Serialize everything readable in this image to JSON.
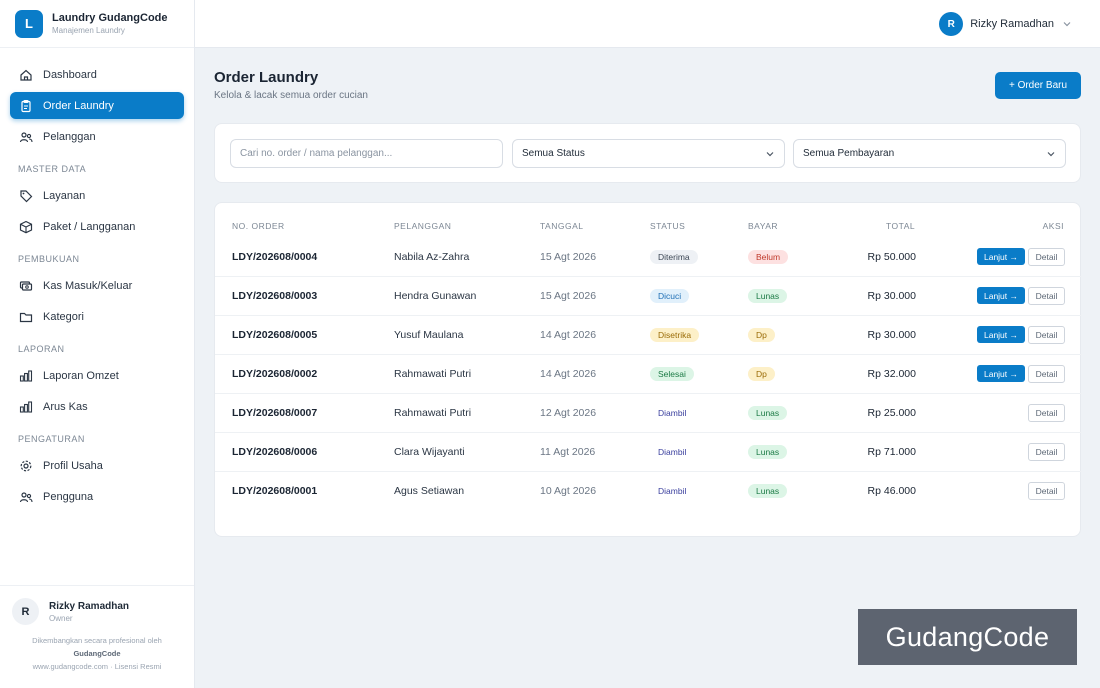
{
  "brand": {
    "logo_letter": "L",
    "title": "Laundry GudangCode",
    "subtitle": "Manajemen Laundry"
  },
  "nav": [
    {
      "label": "Dashboard",
      "icon": "home-icon",
      "active": false
    },
    {
      "label": "Order Laundry",
      "icon": "clipboard-icon",
      "active": true
    },
    {
      "label": "Pelanggan",
      "icon": "users-icon",
      "active": false
    }
  ],
  "sections": [
    {
      "title": "MASTER DATA",
      "items": [
        {
          "label": "Layanan",
          "icon": "tag-icon"
        },
        {
          "label": "Paket / Langganan",
          "icon": "box-icon"
        }
      ]
    },
    {
      "title": "PEMBUKUAN",
      "items": [
        {
          "label": "Kas Masuk/Keluar",
          "icon": "cash-icon"
        },
        {
          "label": "Kategori",
          "icon": "folder-icon"
        }
      ]
    },
    {
      "title": "LAPORAN",
      "items": [
        {
          "label": "Laporan Omzet",
          "icon": "bar-chart-icon"
        },
        {
          "label": "Arus Kas",
          "icon": "bar-chart-icon"
        }
      ]
    },
    {
      "title": "PENGATURAN",
      "items": [
        {
          "label": "Profil Usaha",
          "icon": "gear-icon"
        },
        {
          "label": "Pengguna",
          "icon": "users-icon"
        }
      ]
    }
  ],
  "sidebar_user": {
    "initial": "R",
    "name": "Rizky Ramadhan",
    "role": "Owner"
  },
  "credits": {
    "line1": "Dikembangkan secara profesional oleh",
    "company": "GudangCode",
    "line3": "www.gudangcode.com · Lisensi Resmi"
  },
  "topbar": {
    "initial": "R",
    "name": "Rizky Ramadhan"
  },
  "page": {
    "title": "Order Laundry",
    "subtitle": "Kelola & lacak semua order cucian",
    "new_button": "+ Order Baru"
  },
  "filters": {
    "search_placeholder": "Cari no. order / nama pelanggan...",
    "status_selected": "Semua Status",
    "payment_selected": "Semua Pembayaran"
  },
  "table": {
    "headers": [
      "NO. ORDER",
      "PELANGGAN",
      "TANGGAL",
      "STATUS",
      "BAYAR",
      "TOTAL",
      "AKSI"
    ],
    "lanjut_label": "Lanjut →",
    "detail_label": "Detail",
    "rows": [
      {
        "order": "LDY/202608/0004",
        "customer": "Nabila Az-Zahra",
        "date": "15 Agt 2026",
        "status": "Diterima",
        "pay": "Belum",
        "total": "Rp 50.000",
        "lanjut": true
      },
      {
        "order": "LDY/202608/0003",
        "customer": "Hendra Gunawan",
        "date": "15 Agt 2026",
        "status": "Dicuci",
        "pay": "Lunas",
        "total": "Rp 30.000",
        "lanjut": true
      },
      {
        "order": "LDY/202608/0005",
        "customer": "Yusuf Maulana",
        "date": "14 Agt 2026",
        "status": "Disetrika",
        "pay": "Dp",
        "total": "Rp 30.000",
        "lanjut": true
      },
      {
        "order": "LDY/202608/0002",
        "customer": "Rahmawati Putri",
        "date": "14 Agt 2026",
        "status": "Selesai",
        "pay": "Dp",
        "total": "Rp 32.000",
        "lanjut": true
      },
      {
        "order": "LDY/202608/0007",
        "customer": "Rahmawati Putri",
        "date": "12 Agt 2026",
        "status": "Diambil",
        "pay": "Lunas",
        "total": "Rp 25.000",
        "lanjut": false
      },
      {
        "order": "LDY/202608/0006",
        "customer": "Clara Wijayanti",
        "date": "11 Agt 2026",
        "status": "Diambil",
        "pay": "Lunas",
        "total": "Rp 71.000",
        "lanjut": false
      },
      {
        "order": "LDY/202608/0001",
        "customer": "Agus Setiawan",
        "date": "10 Agt 2026",
        "status": "Diambil",
        "pay": "Lunas",
        "total": "Rp 46.000",
        "lanjut": false
      }
    ]
  },
  "status_colors": {
    "Diterima": {
      "bg": "#eef1f5",
      "fg": "#3b4654"
    },
    "Dicuci": {
      "bg": "#e1f0fb",
      "fg": "#1f6fb5"
    },
    "Disetrika": {
      "bg": "#fdf0c8",
      "fg": "#9a6b06"
    },
    "Selesai": {
      "bg": "#dcf5e6",
      "fg": "#1b7a45"
    },
    "Diambil": {
      "bg": "#ffffff",
      "fg": "#3a3f9e"
    }
  },
  "pay_colors": {
    "Belum": {
      "bg": "#fde1e1",
      "fg": "#c0392b"
    },
    "Lunas": {
      "bg": "#dcf5e6",
      "fg": "#1b7a45"
    },
    "Dp": {
      "bg": "#fdf0c8",
      "fg": "#9a6b06"
    }
  },
  "accent": "#0a7cc8",
  "watermark": "GudangCode"
}
